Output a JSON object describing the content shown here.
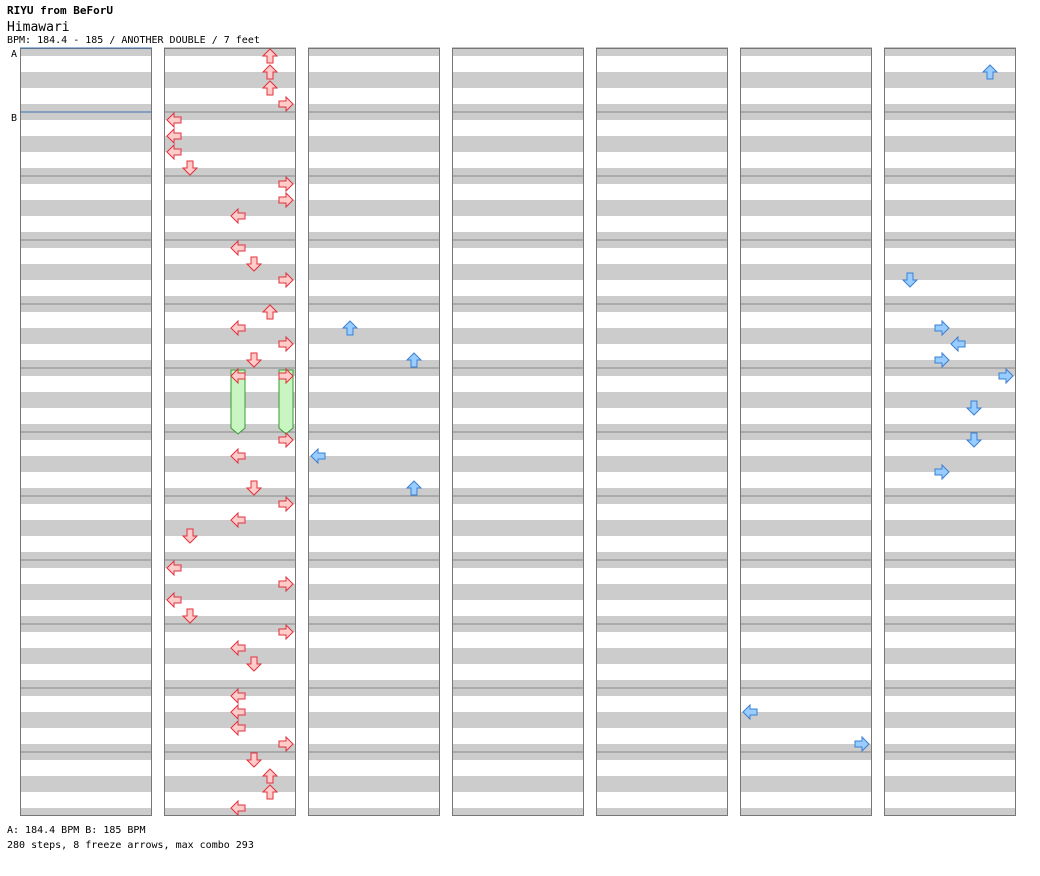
{
  "header": {
    "artist": "RIYU from BeForU",
    "song_title": "Himawari",
    "bpm_line": "BPM: 184.4 - 185 / ANOTHER DOUBLE / 7 feet"
  },
  "footer": {
    "bpm_legend": "A: 184.4 BPM        B: 185 BPM",
    "stats": "280 steps, 8 freeze arrows, max combo 293"
  },
  "colors": {
    "note_fill": "#ffcccc",
    "note_stroke": "#e0303a",
    "mine_fill": "#99ccff",
    "mine_stroke": "#3a7fd0",
    "freeze_fill": "#c8f5c0",
    "freeze_stroke": "#3a9a3a",
    "stripe": "#cccccc",
    "bpm_line": "#3a6fb0"
  },
  "chart_data": {
    "type": "step-chart",
    "columns": 7,
    "measures_per_column": 12,
    "lanes": [
      "L",
      "D",
      "U",
      "R",
      "L",
      "D",
      "U",
      "R"
    ],
    "bpm_markers": [
      {
        "label": "A",
        "column": 0,
        "measure": 0,
        "beat": 0
      },
      {
        "label": "B",
        "column": 0,
        "measure": 1,
        "beat": 0
      }
    ],
    "notes": [
      {
        "c": 1,
        "m": 0,
        "b": 0,
        "l": "U2"
      },
      {
        "c": 1,
        "m": 0,
        "b": 1,
        "l": "U2"
      },
      {
        "c": 1,
        "m": 0,
        "b": 2,
        "l": "U2"
      },
      {
        "c": 1,
        "m": 0,
        "b": 3,
        "l": "R2"
      },
      {
        "c": 1,
        "m": 1,
        "b": 0,
        "l": "L1"
      },
      {
        "c": 1,
        "m": 1,
        "b": 1,
        "l": "L1"
      },
      {
        "c": 1,
        "m": 1,
        "b": 2,
        "l": "L1"
      },
      {
        "c": 1,
        "m": 1,
        "b": 3,
        "l": "D1"
      },
      {
        "c": 1,
        "m": 2,
        "b": 0,
        "l": "R2"
      },
      {
        "c": 1,
        "m": 2,
        "b": 1,
        "l": "R2"
      },
      {
        "c": 1,
        "m": 2,
        "b": 2,
        "l": "L2"
      },
      {
        "c": 1,
        "m": 3,
        "b": 0,
        "l": "L2"
      },
      {
        "c": 1,
        "m": 3,
        "b": 1,
        "l": "D2"
      },
      {
        "c": 1,
        "m": 3,
        "b": 2,
        "l": "R2b"
      },
      {
        "c": 1,
        "m": 4,
        "b": 0,
        "l": "U2b"
      },
      {
        "c": 1,
        "m": 4,
        "b": 1,
        "l": "L2"
      },
      {
        "c": 1,
        "m": 4,
        "b": 2,
        "l": "R2b"
      },
      {
        "c": 1,
        "m": 4,
        "b": 3,
        "l": "D2"
      },
      {
        "c": 1,
        "m": 5,
        "b": 0,
        "l": "L2",
        "freeze": 4
      },
      {
        "c": 1,
        "m": 5,
        "b": 0,
        "l": "R2b",
        "freeze": 4
      },
      {
        "c": 1,
        "m": 6,
        "b": 0,
        "l": "R2b"
      },
      {
        "c": 1,
        "m": 6,
        "b": 1,
        "l": "L2"
      },
      {
        "c": 1,
        "m": 6,
        "b": 3,
        "l": "D2"
      },
      {
        "c": 1,
        "m": 7,
        "b": 0,
        "l": "R2"
      },
      {
        "c": 1,
        "m": 7,
        "b": 1,
        "l": "L2"
      },
      {
        "c": 1,
        "m": 7,
        "b": 2,
        "l": "D1"
      },
      {
        "c": 1,
        "m": 8,
        "b": 0,
        "l": "L1"
      },
      {
        "c": 1,
        "m": 8,
        "b": 1,
        "l": "R2"
      },
      {
        "c": 1,
        "m": 8,
        "b": 2,
        "l": "L1"
      },
      {
        "c": 1,
        "m": 8,
        "b": 3,
        "l": "D1"
      },
      {
        "c": 1,
        "m": 9,
        "b": 0,
        "l": "R2"
      },
      {
        "c": 1,
        "m": 9,
        "b": 1,
        "l": "L2"
      },
      {
        "c": 1,
        "m": 9,
        "b": 2,
        "l": "D2"
      },
      {
        "c": 1,
        "m": 10,
        "b": 0,
        "l": "L2"
      },
      {
        "c": 1,
        "m": 10,
        "b": 1,
        "l": "L2"
      },
      {
        "c": 1,
        "m": 10,
        "b": 2,
        "l": "L2"
      },
      {
        "c": 1,
        "m": 10,
        "b": 3,
        "l": "R2"
      },
      {
        "c": 1,
        "m": 11,
        "b": 0,
        "l": "D2"
      },
      {
        "c": 1,
        "m": 11,
        "b": 1,
        "l": "U2"
      },
      {
        "c": 1,
        "m": 11,
        "b": 2,
        "l": "U2"
      },
      {
        "c": 1,
        "m": 11,
        "b": 3,
        "l": "L2"
      }
    ]
  }
}
